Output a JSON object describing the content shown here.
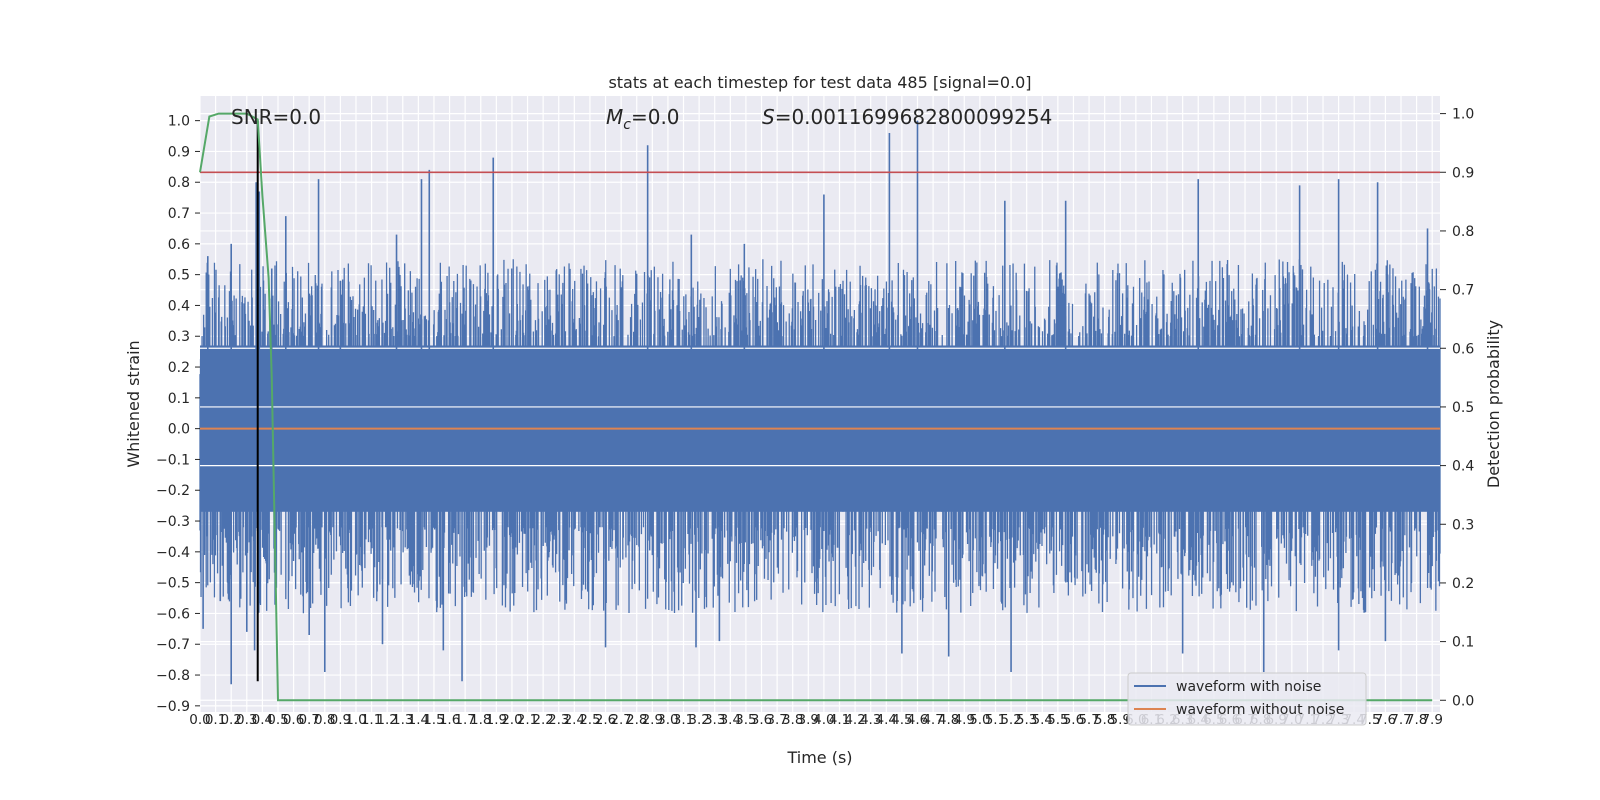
{
  "chart_data": {
    "type": "line",
    "title": "stats at each timestep for test data 485 [signal=0.0]",
    "xlabel": "Time (s)",
    "ylabel": "Whitened strain",
    "y2label": "Detection probability",
    "xlim": [
      0.0,
      7.95
    ],
    "ylim": [
      -0.92,
      1.08
    ],
    "y2lim": [
      -0.02,
      1.03
    ],
    "x_ticks": [
      0.0,
      0.1,
      0.2,
      0.3,
      0.4,
      0.5,
      0.6,
      0.7,
      0.8,
      0.9,
      1.0,
      1.1,
      1.2,
      1.3,
      1.4,
      1.5,
      1.6,
      1.7,
      1.8,
      1.9,
      2.0,
      2.1,
      2.2,
      2.3,
      2.4,
      2.5,
      2.6,
      2.7,
      2.8,
      2.9,
      3.0,
      3.1,
      3.2,
      3.3,
      3.4,
      3.5,
      3.6,
      3.7,
      3.8,
      3.9,
      4.0,
      4.1,
      4.2,
      4.3,
      4.4,
      4.5,
      4.6,
      4.7,
      4.8,
      4.9,
      5.0,
      5.1,
      5.2,
      5.3,
      5.4,
      5.5,
      5.6,
      5.7,
      5.8,
      5.9,
      6.0,
      6.1,
      6.2,
      6.3,
      6.4,
      6.5,
      6.6,
      6.7,
      6.8,
      6.9,
      7.0,
      7.1,
      7.2,
      7.3,
      7.4,
      7.5,
      7.6,
      7.7,
      7.8,
      7.9
    ],
    "x_tick_labels": [
      "0.0",
      "0.1",
      "0.2",
      "0.3",
      "0.4",
      "0.5",
      "0.6",
      "0.7",
      "0.8",
      "0.9",
      "1.0",
      "1.1",
      "1.2",
      "1.3",
      "1.4",
      "1.5",
      "1.6",
      "1.7",
      "1.8",
      "1.9",
      "2.0",
      "2.1",
      "2.2",
      "2.3",
      "2.4",
      "2.5",
      "2.6",
      "2.7",
      "2.8",
      "2.9",
      "3.0",
      "3.1",
      "3.2",
      "3.3",
      "3.4",
      "3.5",
      "3.6",
      "3.7",
      "3.8",
      "3.9",
      "4.0",
      "4.1",
      "4.2",
      "4.3",
      "4.4",
      "4.5",
      "4.6",
      "4.7",
      "4.8",
      "4.9",
      "5.0",
      "5.1",
      "5.2",
      "5.3",
      "5.4",
      "5.5",
      "5.6",
      "5.7",
      "5.8",
      "5.9",
      "6.0",
      "6.1",
      "6.2",
      "6.3",
      "6.4",
      "6.5",
      "6.6",
      "6.7",
      "6.8",
      "6.9",
      "7.0",
      "7.1",
      "7.2",
      "7.3",
      "7.4",
      "7.5",
      "7.6",
      "7.7",
      "7.8",
      "7.9"
    ],
    "y_ticks": [
      1.0,
      0.9,
      0.8,
      0.7,
      0.6,
      0.5,
      0.4,
      0.3,
      0.2,
      0.1,
      0.0,
      -0.1,
      -0.2,
      -0.3,
      -0.4,
      -0.5,
      -0.6,
      -0.7,
      -0.8,
      -0.9
    ],
    "y_tick_labels": [
      "1.0",
      "0.9",
      "0.8",
      "0.7",
      "0.6",
      "0.5",
      "0.4",
      "0.3",
      "0.2",
      "0.1",
      "0.0",
      "−0.1",
      "−0.2",
      "−0.3",
      "−0.4",
      "−0.5",
      "−0.6",
      "−0.7",
      "−0.8",
      "−0.9"
    ],
    "y2_ticks": [
      1.0,
      0.9,
      0.8,
      0.7,
      0.6,
      0.5,
      0.4,
      0.3,
      0.2,
      0.1,
      0.0
    ],
    "y2_tick_labels": [
      "1.0",
      "0.9",
      "0.8",
      "0.7",
      "0.6",
      "0.5",
      "0.4",
      "0.3",
      "0.2",
      "0.1",
      "0.0"
    ],
    "grid": true,
    "legend_position": "lower-right",
    "annotations": {
      "snr": "SNR=0.0",
      "mc_symbol": "M",
      "mc_sub": "c",
      "mc_value": "=0.0",
      "s_symbol": "S",
      "s_value": "=0.0011699682800099254"
    },
    "series": [
      {
        "name": "waveform with noise",
        "color": "#4c72b0",
        "axis": "left",
        "kind": "noise",
        "core_band": [
          -0.27,
          0.27
        ],
        "typical_peak": [
          0.3,
          0.55
        ],
        "notable_peaks": [
          [
            0.05,
            0.56
          ],
          [
            0.2,
            0.6
          ],
          [
            0.36,
            0.8
          ],
          [
            0.38,
            0.77
          ],
          [
            0.46,
            0.52
          ],
          [
            0.55,
            0.69
          ],
          [
            0.76,
            0.81
          ],
          [
            0.9,
            0.48
          ],
          [
            1.26,
            0.63
          ],
          [
            1.42,
            0.81
          ],
          [
            1.47,
            0.84
          ],
          [
            1.88,
            0.88
          ],
          [
            2.87,
            0.92
          ],
          [
            3.15,
            0.63
          ],
          [
            3.49,
            0.6
          ],
          [
            4.0,
            0.76
          ],
          [
            4.42,
            0.96
          ],
          [
            4.6,
            1.0
          ],
          [
            5.16,
            0.74
          ],
          [
            5.55,
            0.74
          ],
          [
            6.4,
            0.81
          ],
          [
            7.05,
            0.79
          ],
          [
            7.3,
            0.81
          ],
          [
            7.55,
            0.8
          ],
          [
            7.87,
            0.65
          ]
        ],
        "notable_troughs": [
          [
            0.02,
            -0.65
          ],
          [
            0.13,
            -0.56
          ],
          [
            0.2,
            -0.83
          ],
          [
            0.3,
            -0.66
          ],
          [
            0.35,
            -0.72
          ],
          [
            0.7,
            -0.67
          ],
          [
            0.8,
            -0.79
          ],
          [
            1.17,
            -0.7
          ],
          [
            1.56,
            -0.72
          ],
          [
            1.68,
            -0.82
          ],
          [
            2.6,
            -0.71
          ],
          [
            3.18,
            -0.71
          ],
          [
            3.33,
            -0.69
          ],
          [
            4.5,
            -0.73
          ],
          [
            4.8,
            -0.74
          ],
          [
            5.2,
            -0.79
          ],
          [
            6.3,
            -0.73
          ],
          [
            6.82,
            -0.79
          ],
          [
            7.3,
            -0.72
          ],
          [
            7.6,
            -0.69
          ]
        ]
      },
      {
        "name": "waveform without noise",
        "color": "#dd8452",
        "axis": "left",
        "x": [
          0.0,
          7.95
        ],
        "y": [
          0.0,
          0.0
        ]
      },
      {
        "name": "",
        "color": "#55a868",
        "axis": "right",
        "x": [
          0.0,
          0.06,
          0.12,
          0.2,
          0.3,
          0.37,
          0.4,
          0.44,
          0.46,
          0.5,
          4.8,
          7.9
        ],
        "y": [
          0.9,
          0.995,
          1.0,
          1.0,
          1.0,
          0.99,
          0.86,
          0.72,
          0.55,
          0.0,
          0.0,
          0.0
        ]
      }
    ],
    "threshold": {
      "axis": "right",
      "value": 0.9,
      "color": "#c44e52"
    },
    "vline": {
      "x": 0.37,
      "y_from": -0.82,
      "y_to": 1.0,
      "color": "#000000"
    }
  }
}
